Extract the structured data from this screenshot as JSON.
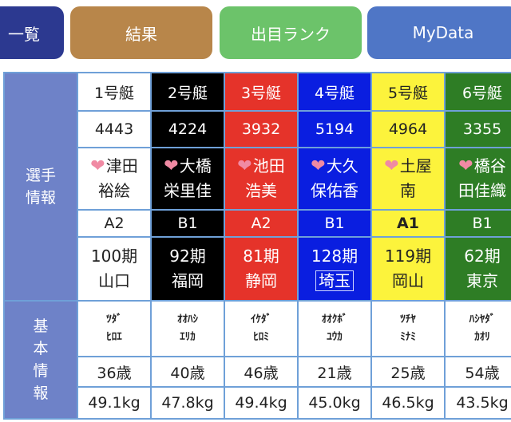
{
  "tabs": {
    "list": "一覧",
    "result": "結果",
    "rank": "出目ランク",
    "mydata": "MyData"
  },
  "sections": {
    "player_info": [
      "選",
      "手",
      "情",
      "報"
    ],
    "basic_info": [
      "基",
      "本",
      "情",
      "報"
    ]
  },
  "icons": {
    "favorite": "heart-icon"
  },
  "boats": [
    {
      "boat": "1号艇",
      "reg_no": "4443",
      "name1": "津田",
      "name2": "裕絵",
      "rank": "A2",
      "period": "100期",
      "pref": "山口",
      "kana1": "ﾂﾀﾞ",
      "kana2": "ﾋﾛｴ",
      "age": "36歳",
      "weight": "49.1kg",
      "color": "#ffffff"
    },
    {
      "boat": "2号艇",
      "reg_no": "4224",
      "name1": "大橋",
      "name2": "栄里佳",
      "rank": "B1",
      "period": "92期",
      "pref": "福岡",
      "kana1": "ｵｵﾊｼ",
      "kana2": "ｴﾘｶ",
      "age": "40歳",
      "weight": "47.8kg",
      "color": "#000000"
    },
    {
      "boat": "3号艇",
      "reg_no": "3932",
      "name1": "池田",
      "name2": "浩美",
      "rank": "A2",
      "period": "81期",
      "pref": "静岡",
      "kana1": "ｲｹﾀﾞ",
      "kana2": "ﾋﾛﾐ",
      "age": "46歳",
      "weight": "49.4kg",
      "color": "#e5332a"
    },
    {
      "boat": "4号艇",
      "reg_no": "5194",
      "name1": "大久",
      "name2": "保佑香",
      "rank": "B1",
      "period": "128期",
      "pref": "埼玉",
      "kana1": "ｵｵｸﾎﾞ",
      "kana2": "ﾕｳｶ",
      "age": "21歳",
      "weight": "45.0kg",
      "color": "#0a1ee0"
    },
    {
      "boat": "5号艇",
      "reg_no": "4964",
      "name1": "土屋",
      "name2": "南",
      "rank": "A1",
      "period": "119期",
      "pref": "岡山",
      "kana1": "ﾂﾁﾔ",
      "kana2": "ﾐﾅﾐ",
      "age": "25歳",
      "weight": "46.5kg",
      "color": "#fcf33c"
    },
    {
      "boat": "6号艇",
      "reg_no": "3355",
      "name1": "橋谷",
      "name2": "田佳織",
      "rank": "B1",
      "period": "62期",
      "pref": "東京",
      "kana1": "ﾊｼﾔﾀﾞ",
      "kana2": "ｶｵﾘ",
      "age": "54歳",
      "weight": "43.5kg",
      "color": "#2e7d25"
    }
  ]
}
